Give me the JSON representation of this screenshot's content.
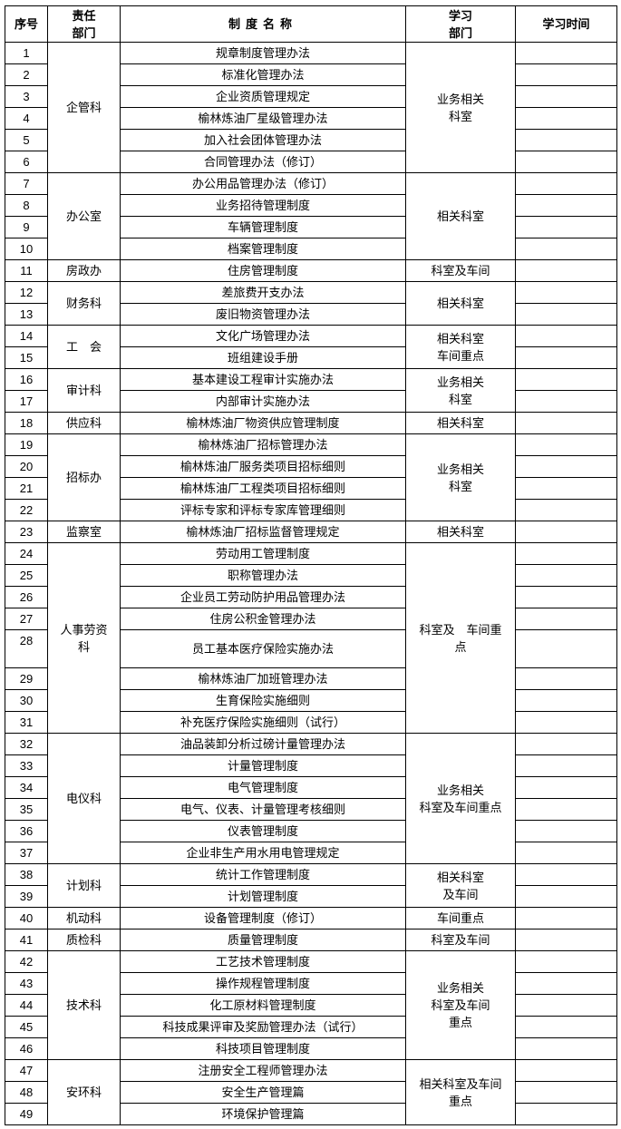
{
  "header": {
    "no": "序号",
    "dept": "责任\n部门",
    "name": "制度名称",
    "study": "学习\n部门",
    "time": "学习时间"
  },
  "groups": [
    {
      "dept": "企管科",
      "study": "业务相关\n科室",
      "rows": [
        {
          "no": "1",
          "name": "规章制度管理办法"
        },
        {
          "no": "2",
          "name": "标准化管理办法"
        },
        {
          "no": "3",
          "name": "企业资质管理规定"
        },
        {
          "no": "4",
          "name": "榆林炼油厂星级管理办法"
        },
        {
          "no": "5",
          "name": "加入社会团体管理办法"
        },
        {
          "no": "6",
          "name": "合同管理办法（修订）"
        }
      ]
    },
    {
      "dept": "办公室",
      "study": "相关科室",
      "rows": [
        {
          "no": "7",
          "name": "办公用品管理办法（修订）"
        },
        {
          "no": "8",
          "name": "业务招待管理制度"
        },
        {
          "no": "9",
          "name": "车辆管理制度"
        },
        {
          "no": "10",
          "name": "档案管理制度"
        }
      ]
    },
    {
      "dept": "房政办",
      "study": "科室及车间",
      "rows": [
        {
          "no": "11",
          "name": "住房管理制度"
        }
      ]
    },
    {
      "dept": "财务科",
      "study": "相关科室",
      "rows": [
        {
          "no": "12",
          "name": "差旅费开支办法"
        },
        {
          "no": "13",
          "name": "废旧物资管理办法"
        }
      ]
    },
    {
      "dept": "工　会",
      "study": "相关科室\n车间重点",
      "rows": [
        {
          "no": "14",
          "name": "文化广场管理办法"
        },
        {
          "no": "15",
          "name": "班组建设手册"
        }
      ]
    },
    {
      "dept": "审计科",
      "study": "业务相关\n科室",
      "rows": [
        {
          "no": "16",
          "name": "基本建设工程审计实施办法"
        },
        {
          "no": "17",
          "name": "内部审计实施办法"
        }
      ]
    },
    {
      "dept": "供应科",
      "study": "相关科室",
      "rows": [
        {
          "no": "18",
          "name": "榆林炼油厂物资供应管理制度"
        }
      ]
    },
    {
      "dept": "招标办",
      "study": "业务相关\n科室",
      "rows": [
        {
          "no": "19",
          "name": "榆林炼油厂招标管理办法"
        },
        {
          "no": "20",
          "name": "榆林炼油厂服务类项目招标细则"
        },
        {
          "no": "21",
          "name": "榆林炼油厂工程类项目招标细则"
        },
        {
          "no": "22",
          "name": "评标专家和评标专家库管理细则"
        }
      ]
    },
    {
      "dept": "监察室",
      "study": "相关科室",
      "rows": [
        {
          "no": "23",
          "name": "榆林炼油厂招标监督管理规定"
        }
      ]
    },
    {
      "dept": "人事劳资\n科",
      "study": "科室及　车间重\n点",
      "rows": [
        {
          "no": "24",
          "name": "劳动用工管理制度"
        },
        {
          "no": "25",
          "name": "职称管理办法"
        },
        {
          "no": "26",
          "name": "企业员工劳动防护用品管理办法"
        },
        {
          "no": "27",
          "name": "住房公积金管理办法"
        },
        {
          "no": "28",
          "name": "员工基本医疗保险实施办法",
          "tall": true
        },
        {
          "no": "29",
          "name": "榆林炼油厂加班管理办法"
        },
        {
          "no": "30",
          "name": "生育保险实施细则"
        },
        {
          "no": "31",
          "name": "补充医疗保险实施细则（试行）"
        }
      ]
    },
    {
      "dept": "电仪科",
      "study": "业务相关\n科室及车间重点",
      "rows": [
        {
          "no": "32",
          "name": "油品装卸分析过磅计量管理办法"
        },
        {
          "no": "33",
          "name": "计量管理制度"
        },
        {
          "no": "34",
          "name": "电气管理制度"
        },
        {
          "no": "35",
          "name": "电气、仪表、计量管理考核细则"
        },
        {
          "no": "36",
          "name": "仪表管理制度"
        },
        {
          "no": "37",
          "name": "企业非生产用水用电管理规定"
        }
      ]
    },
    {
      "dept": "计划科",
      "study": "相关科室\n及车间",
      "rows": [
        {
          "no": "38",
          "name": "统计工作管理制度"
        },
        {
          "no": "39",
          "name": "计划管理制度"
        }
      ]
    },
    {
      "dept": "机动科",
      "study": "车间重点",
      "rows": [
        {
          "no": "40",
          "name": "设备管理制度（修订）"
        }
      ]
    },
    {
      "dept": "质检科",
      "study": "科室及车间",
      "rows": [
        {
          "no": "41",
          "name": "质量管理制度"
        }
      ]
    },
    {
      "dept": "技术科",
      "study": "业务相关\n科室及车间\n重点",
      "rows": [
        {
          "no": "42",
          "name": "工艺技术管理制度"
        },
        {
          "no": "43",
          "name": "操作规程管理制度"
        },
        {
          "no": "44",
          "name": "化工原材料管理制度"
        },
        {
          "no": "45",
          "name": "科技成果评审及奖励管理办法（试行）"
        },
        {
          "no": "46",
          "name": "科技项目管理制度"
        }
      ]
    },
    {
      "dept": "安环科",
      "study": "相关科室及车间\n重点",
      "rows": [
        {
          "no": "47",
          "name": "注册安全工程师管理办法"
        },
        {
          "no": "48",
          "name": "安全生产管理篇"
        },
        {
          "no": "49",
          "name": "环境保护管理篇"
        }
      ]
    }
  ]
}
